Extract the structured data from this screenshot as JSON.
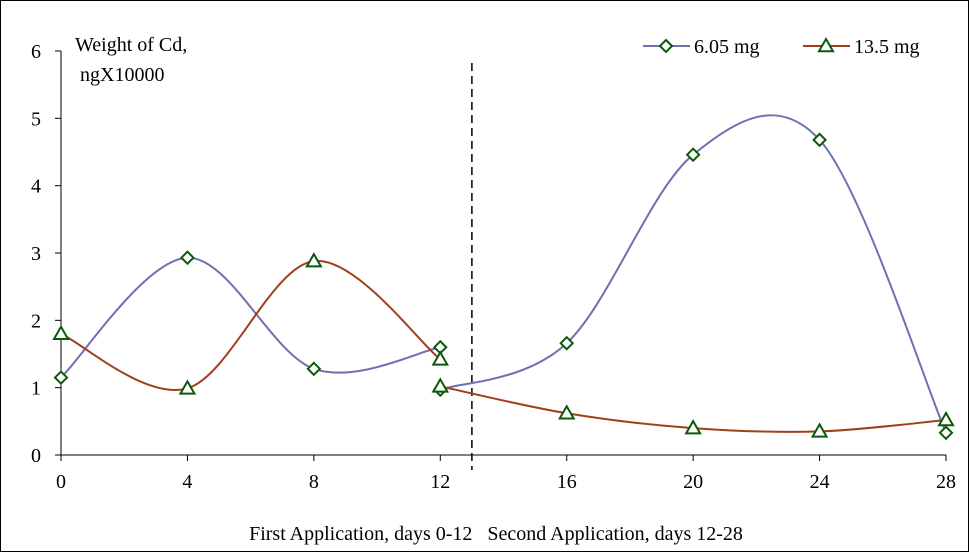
{
  "chart_data": {
    "type": "line",
    "ylabel_lines": [
      "Weight of Cd,",
      "ngX10000"
    ],
    "xlabel": "First Application, days 0-12   Second Application, days 12-28",
    "x_ticks": [
      "0",
      "4",
      "8",
      "12",
      "16",
      "20",
      "24",
      "28"
    ],
    "y_ticks": [
      "0",
      "1",
      "2",
      "3",
      "4",
      "5",
      "6"
    ],
    "xlim": [
      0,
      28
    ],
    "ylim": [
      0,
      6
    ],
    "divider_x": 13,
    "grid": false,
    "legend_position": "top-right",
    "series": [
      {
        "name": "6.05 mg",
        "marker": "diamond",
        "color": "#7070B0",
        "segments": [
          [
            [
              0,
              1.15
            ],
            [
              4,
              2.93
            ],
            [
              8,
              1.28
            ],
            [
              12,
              1.6
            ]
          ],
          [
            [
              12,
              0.97
            ],
            [
              16,
              1.66
            ],
            [
              20,
              4.46
            ],
            [
              24,
              4.68
            ],
            [
              28,
              0.33
            ]
          ]
        ]
      },
      {
        "name": "13.5 mg",
        "marker": "triangle",
        "color": "#A0401A",
        "segments": [
          [
            [
              0,
              1.8
            ],
            [
              4,
              0.99
            ],
            [
              8,
              2.88
            ],
            [
              12,
              1.42
            ]
          ],
          [
            [
              12,
              1.02
            ],
            [
              16,
              0.62
            ],
            [
              20,
              0.4
            ],
            [
              24,
              0.35
            ],
            [
              28,
              0.52
            ]
          ]
        ]
      }
    ],
    "marker_edge_color": "#0B5A0B"
  }
}
